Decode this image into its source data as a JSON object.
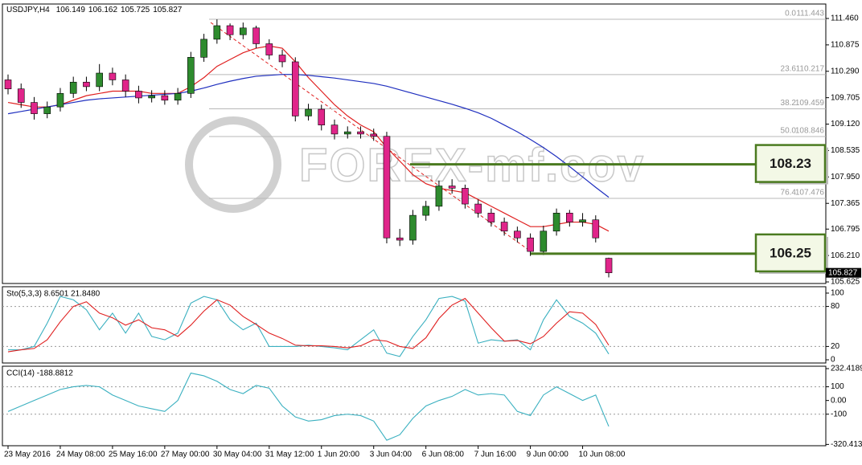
{
  "chart_data": [
    {
      "type": "candlestick",
      "symbol": "USDJPY,H4",
      "watermark": "FOREX-mf.cov",
      "categories": [
        "23 May 2016",
        null,
        null,
        null,
        "24 May 08:00",
        null,
        null,
        null,
        "25 May 16:00",
        null,
        null,
        null,
        "27 May 00:00",
        null,
        null,
        null,
        "30 May 04:00",
        null,
        null,
        null,
        "31 May 12:00",
        null,
        null,
        null,
        "1 Jun 20:00",
        null,
        null,
        null,
        "3 Jun 04:00",
        null,
        null,
        null,
        "6 Jun 08:00",
        null,
        null,
        null,
        "7 Jun 16:00",
        null,
        null,
        null,
        "9 Jun 00:00",
        null,
        null,
        null,
        "10 Jun 08:00",
        null,
        null
      ],
      "candles": {
        "open": [
          110.1,
          109.9,
          109.6,
          109.35,
          109.5,
          109.8,
          110.05,
          109.95,
          110.25,
          110.1,
          109.85,
          109.7,
          109.75,
          109.65,
          109.8,
          110.6,
          111.0,
          111.3,
          111.1,
          111.25,
          110.9,
          110.65,
          110.5,
          109.3,
          109.45,
          109.1,
          108.9,
          108.95,
          108.9,
          108.85,
          106.6,
          106.55,
          107.1,
          107.3,
          107.75,
          107.7,
          107.35,
          107.15,
          106.95,
          106.75,
          106.6,
          106.3,
          106.75,
          107.15,
          106.95,
          107.0,
          106.149
        ],
        "high": [
          110.22,
          110.02,
          109.72,
          109.62,
          109.92,
          110.17,
          110.17,
          110.45,
          110.37,
          110.22,
          109.97,
          109.87,
          109.87,
          109.92,
          110.72,
          111.12,
          111.44,
          111.35,
          111.37,
          111.3,
          111.0,
          110.77,
          110.6,
          109.57,
          109.55,
          109.22,
          109.07,
          109.07,
          109.02,
          108.95,
          106.8,
          107.22,
          107.42,
          107.87,
          107.9,
          107.78,
          107.45,
          107.25,
          107.05,
          106.85,
          106.7,
          106.87,
          107.25,
          107.22,
          107.15,
          107.1,
          106.162
        ],
        "low": [
          109.78,
          109.48,
          109.22,
          109.25,
          109.4,
          109.7,
          109.85,
          109.85,
          109.98,
          109.72,
          109.58,
          109.6,
          109.55,
          109.55,
          109.7,
          110.5,
          110.9,
          110.98,
          111.0,
          110.8,
          110.55,
          110.38,
          109.18,
          109.2,
          108.98,
          108.78,
          108.8,
          108.8,
          108.75,
          106.48,
          106.42,
          106.45,
          106.98,
          107.2,
          107.58,
          107.25,
          107.05,
          106.85,
          106.65,
          106.5,
          106.2,
          106.22,
          106.65,
          106.85,
          106.85,
          106.5,
          105.725
        ],
        "close": [
          109.9,
          109.6,
          109.35,
          109.5,
          109.8,
          110.05,
          109.95,
          110.25,
          110.1,
          109.85,
          109.7,
          109.75,
          109.65,
          109.8,
          110.6,
          111.0,
          111.3,
          111.1,
          111.25,
          110.9,
          110.65,
          110.5,
          109.3,
          109.45,
          109.1,
          108.9,
          108.95,
          108.9,
          108.85,
          106.6,
          106.55,
          107.1,
          107.3,
          107.75,
          107.7,
          107.35,
          107.15,
          106.95,
          106.75,
          106.6,
          106.3,
          106.75,
          107.15,
          106.95,
          107.0,
          106.6,
          105.827
        ]
      },
      "up_color": "#2e8b2e",
      "down_color": "#e0258a",
      "series": [
        {
          "color": "#e02020",
          "values": [
            109.6,
            109.55,
            109.5,
            109.5,
            109.55,
            109.65,
            109.75,
            109.8,
            109.85,
            109.85,
            109.85,
            109.8,
            109.8,
            109.8,
            109.95,
            110.15,
            110.4,
            110.55,
            110.7,
            110.8,
            110.85,
            110.8,
            110.5,
            110.15,
            109.85,
            109.55,
            109.3,
            109.1,
            108.95,
            108.6,
            108.3,
            108.0,
            107.8,
            107.7,
            107.65,
            107.6,
            107.45,
            107.3,
            107.15,
            107.0,
            106.85,
            106.85,
            106.9,
            106.95,
            106.95,
            106.9,
            106.75
          ]
        },
        {
          "color": "#1f2fbf",
          "values": [
            109.35,
            109.4,
            109.45,
            109.5,
            109.55,
            109.6,
            109.65,
            109.68,
            109.7,
            109.72,
            109.74,
            109.76,
            109.78,
            109.8,
            109.85,
            109.92,
            110.0,
            110.07,
            110.13,
            110.18,
            110.2,
            110.22,
            110.22,
            110.2,
            110.17,
            110.14,
            110.1,
            110.06,
            110.02,
            109.96,
            109.88,
            109.8,
            109.72,
            109.64,
            109.56,
            109.47,
            109.37,
            109.25,
            109.1,
            108.95,
            108.78,
            108.6,
            108.4,
            108.18,
            107.95,
            107.72,
            107.5
          ]
        }
      ],
      "ylim": [
        105.59,
        111.78
      ],
      "yticks": [
        {
          "value": 111.46,
          "label": "111.460"
        },
        {
          "value": 110.875,
          "label": "110.875"
        },
        {
          "value": 110.29,
          "label": "110.290"
        },
        {
          "value": 109.705,
          "label": "109.705"
        },
        {
          "value": 109.12,
          "label": "109.120"
        },
        {
          "value": 108.535,
          "label": "108.535"
        },
        {
          "value": 107.95,
          "label": "107.950"
        },
        {
          "value": 107.365,
          "label": "107.365"
        },
        {
          "value": 106.795,
          "label": "106.795"
        },
        {
          "value": 106.21,
          "label": "106.210"
        },
        {
          "value": 105.625,
          "label": "105.625"
        }
      ],
      "fib_levels": [
        {
          "level": "0.0",
          "price": 111.443
        },
        {
          "level": "23.6",
          "price": 110.217
        },
        {
          "level": "38.2",
          "price": 109.459
        },
        {
          "level": "50.0",
          "price": 108.846
        },
        {
          "level": "76.4",
          "price": 107.476
        }
      ],
      "levels": [
        {
          "value": 108.23,
          "color": "#4a7a1f"
        },
        {
          "value": 106.25,
          "color": "#4a7a1f"
        }
      ]
    },
    {
      "type": "line",
      "title": "Sto(5,3,3) 8.6501 21.8480",
      "series": [
        {
          "color": "#3ab0c0",
          "values": [
            15,
            15,
            20,
            55,
            95,
            90,
            75,
            45,
            70,
            40,
            70,
            35,
            30,
            40,
            85,
            95,
            90,
            60,
            45,
            55,
            20,
            20,
            20,
            22,
            20,
            18,
            15,
            30,
            45,
            10,
            5,
            35,
            60,
            92,
            95,
            88,
            25,
            30,
            28,
            30,
            15,
            60,
            90,
            65,
            55,
            40,
            8.6501
          ]
        },
        {
          "color": "#e02020",
          "values": [
            12,
            15,
            17,
            30,
            57,
            80,
            87,
            70,
            63,
            52,
            60,
            48,
            45,
            35,
            52,
            73,
            90,
            82,
            65,
            53,
            40,
            32,
            22,
            21,
            21,
            20,
            18,
            21,
            30,
            28,
            20,
            17,
            33,
            62,
            82,
            92,
            70,
            48,
            28,
            29,
            24,
            35,
            55,
            72,
            70,
            53,
            21.848
          ]
        }
      ],
      "ylim": [
        -4.8,
        109.6
      ],
      "yticks": [
        100,
        80,
        20,
        0
      ],
      "levels": [
        80,
        20
      ]
    },
    {
      "type": "line",
      "title": "CCI(14) -188.8812",
      "series": [
        {
          "color": "#3ab0c0",
          "values": [
            -80,
            -40,
            0,
            40,
            80,
            100,
            110,
            100,
            40,
            0,
            -40,
            -60,
            -80,
            0,
            200,
            180,
            140,
            80,
            50,
            110,
            90,
            -40,
            -120,
            -150,
            -140,
            -110,
            -100,
            -110,
            -150,
            -290,
            -250,
            -130,
            -40,
            0,
            30,
            80,
            40,
            50,
            40,
            -80,
            -110,
            40,
            100,
            50,
            0,
            40,
            -188.8812
          ]
        }
      ],
      "ylim": [
        -330,
        250
      ],
      "yticks": [
        232.4189,
        100,
        {
          "value": 0,
          "label": "0.00"
        },
        -100,
        -320.4139
      ],
      "levels": [
        100,
        -100
      ]
    }
  ]
}
